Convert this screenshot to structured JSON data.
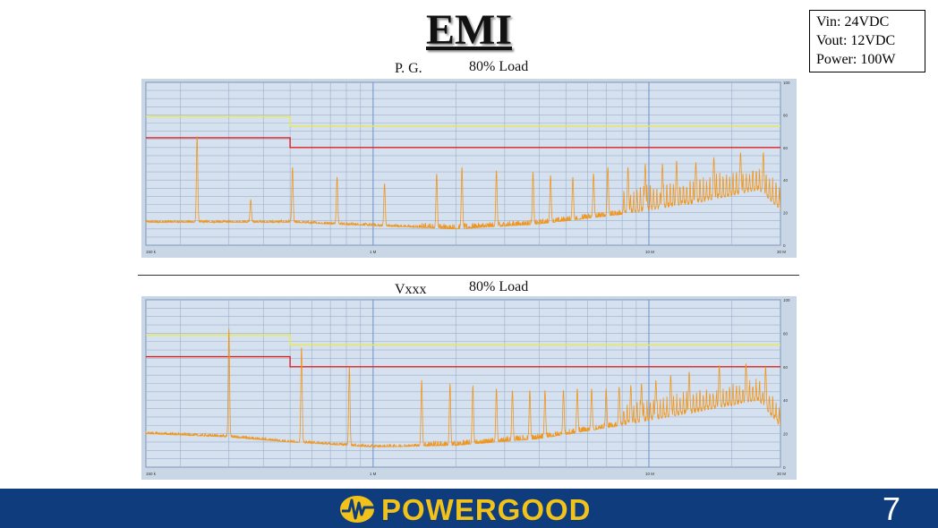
{
  "slide": {
    "title": "EMI",
    "specs": [
      "Vin: 24VDC",
      "Vout: 12VDC",
      "Power: 100W"
    ],
    "page_number": "7",
    "brand": "POWERGOOD"
  },
  "charts": [
    {
      "name": "P. G.",
      "load": "80% Load"
    },
    {
      "name": "Vxxx",
      "load": "80% Load"
    }
  ],
  "colors": {
    "plot_bg": "#d5e1ef",
    "grid": "#9bb0cc",
    "trace": "#f0961e",
    "quasi_peak_limit": "#e8e850",
    "average_limit": "#e02020",
    "footer": "#0f3c7d",
    "brand_text": "#f0c21a"
  },
  "chart_data": [
    {
      "type": "line",
      "title": "P. G.",
      "subtitle": "80% Load",
      "x_scale": "log",
      "xlim": [
        0.15,
        30
      ],
      "ylim": [
        0,
        100
      ],
      "x_tick_labels": [
        "150 k",
        "1 M",
        "10 M",
        "30 M"
      ],
      "y_tick_labels": [
        "100",
        "80",
        "60",
        "40",
        "20",
        "0"
      ],
      "grid": true,
      "limits": [
        {
          "color": "#e8e850",
          "x": [
            0.15,
            0.5,
            0.5,
            30
          ],
          "y": [
            79,
            79,
            73,
            73
          ]
        },
        {
          "color": "#e02020",
          "x": [
            0.15,
            0.5,
            0.5,
            30
          ],
          "y": [
            66,
            66,
            60,
            60
          ]
        }
      ],
      "trace": {
        "baseline": [
          [
            0.15,
            14
          ],
          [
            0.5,
            14
          ],
          [
            1.0,
            12
          ],
          [
            2.0,
            10
          ],
          [
            4.0,
            13
          ],
          [
            8.0,
            19
          ],
          [
            15.0,
            26
          ],
          [
            25.0,
            34
          ],
          [
            30.0,
            22
          ]
        ],
        "noise": [
          3,
          6
        ],
        "noise_from": 1.5,
        "peaks": [
          [
            0.23,
            67
          ],
          [
            0.36,
            28
          ],
          [
            0.51,
            48
          ],
          [
            0.74,
            42
          ],
          [
            1.1,
            38
          ],
          [
            1.7,
            44
          ],
          [
            2.1,
            48
          ],
          [
            2.8,
            46
          ],
          [
            3.8,
            45
          ],
          [
            4.4,
            43
          ],
          [
            5.3,
            42
          ],
          [
            6.3,
            44
          ],
          [
            7.1,
            48
          ],
          [
            8.4,
            48
          ],
          [
            9.7,
            50
          ],
          [
            11.2,
            50
          ],
          [
            12.6,
            52
          ],
          [
            14.8,
            51
          ],
          [
            17.2,
            54
          ],
          [
            21.5,
            57
          ],
          [
            26.0,
            57
          ]
        ],
        "dense_from": 8.0,
        "dense_amp": 16,
        "dense_step": 0.012
      }
    },
    {
      "type": "line",
      "title": "Vxxx",
      "subtitle": "80% Load",
      "x_scale": "log",
      "xlim": [
        0.15,
        30
      ],
      "ylim": [
        0,
        100
      ],
      "x_tick_labels": [
        "150 k",
        "1 M",
        "10 M",
        "30 M"
      ],
      "y_tick_labels": [
        "100",
        "80",
        "60",
        "40",
        "20",
        "0"
      ],
      "grid": true,
      "limits": [
        {
          "color": "#e8e850",
          "x": [
            0.15,
            0.5,
            0.5,
            30
          ],
          "y": [
            79,
            79,
            73,
            73
          ]
        },
        {
          "color": "#e02020",
          "x": [
            0.15,
            0.5,
            0.5,
            30
          ],
          "y": [
            66,
            66,
            60,
            60
          ]
        }
      ],
      "trace": {
        "baseline": [
          [
            0.15,
            20
          ],
          [
            0.3,
            18
          ],
          [
            0.5,
            15
          ],
          [
            1.0,
            12
          ],
          [
            2.0,
            13
          ],
          [
            4.0,
            17
          ],
          [
            8.0,
            25
          ],
          [
            15.0,
            33
          ],
          [
            25.0,
            40
          ],
          [
            30.0,
            24
          ]
        ],
        "noise": [
          3,
          6
        ],
        "noise_from": 1.5,
        "peaks": [
          [
            0.3,
            83
          ],
          [
            0.55,
            72
          ],
          [
            0.82,
            60
          ],
          [
            1.5,
            52
          ],
          [
            1.9,
            50
          ],
          [
            2.3,
            49
          ],
          [
            2.8,
            47
          ],
          [
            3.2,
            46
          ],
          [
            3.7,
            46
          ],
          [
            4.2,
            46
          ],
          [
            4.9,
            46
          ],
          [
            5.5,
            47
          ],
          [
            6.2,
            47
          ],
          [
            7.0,
            47
          ],
          [
            7.8,
            48
          ],
          [
            8.6,
            49
          ],
          [
            9.4,
            50
          ],
          [
            10.6,
            52
          ],
          [
            12.0,
            55
          ],
          [
            14.0,
            57
          ],
          [
            18.0,
            61
          ],
          [
            22.5,
            62
          ],
          [
            26.5,
            60
          ]
        ],
        "dense_from": 8.0,
        "dense_amp": 14,
        "dense_step": 0.012
      }
    }
  ]
}
